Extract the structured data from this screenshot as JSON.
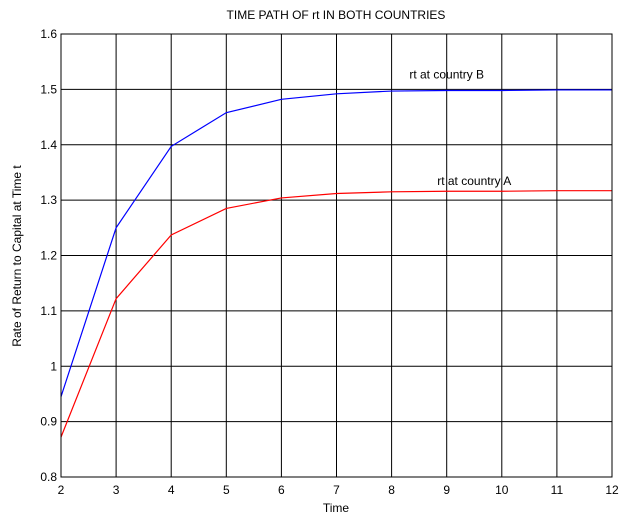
{
  "chart_data": {
    "type": "line",
    "title": "TIME PATH OF rt IN BOTH COUNTRIES",
    "xlabel": "Time",
    "ylabel": "Rate of Return to Capital at Time t",
    "xlim": [
      2,
      12
    ],
    "ylim": [
      0.8,
      1.6
    ],
    "xticks": [
      "2",
      "3",
      "4",
      "5",
      "6",
      "7",
      "8",
      "9",
      "10",
      "11",
      "12"
    ],
    "yticks": [
      "0.8",
      "0.9",
      "1",
      "1.1",
      "1.2",
      "1.3",
      "1.4",
      "1.5",
      "1.6"
    ],
    "grid": true,
    "x": [
      2,
      3,
      4,
      5,
      6,
      7,
      8,
      9,
      10,
      11,
      12
    ],
    "series": [
      {
        "name": "rt at country B",
        "color": "#0000ff",
        "values": [
          0.945,
          1.25,
          1.397,
          1.458,
          1.482,
          1.492,
          1.497,
          1.498,
          1.498,
          1.499,
          1.499
        ]
      },
      {
        "name": "rt at country A",
        "color": "#ff0000",
        "values": [
          0.872,
          1.122,
          1.237,
          1.285,
          1.304,
          1.312,
          1.315,
          1.316,
          1.316,
          1.317,
          1.317
        ]
      }
    ],
    "annotations": [
      {
        "text": "rt at country B",
        "x": 9.0,
        "y": 1.52
      },
      {
        "text": "rt at country A",
        "x": 9.5,
        "y": 1.327
      }
    ]
  }
}
